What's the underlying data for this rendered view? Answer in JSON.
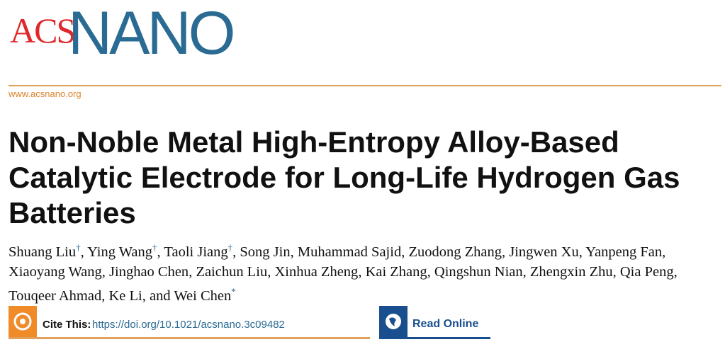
{
  "header": {
    "logo_left": "ACS",
    "logo_right": "NANO",
    "url": "www.acsnano.org"
  },
  "article": {
    "title": "Non-Noble Metal High-Entropy Alloy-Based Catalytic Electrode for Long-Life Hydrogen Gas Batteries",
    "authors": [
      {
        "name": "Shuang Liu",
        "mark": "†"
      },
      {
        "name": "Ying Wang",
        "mark": "†"
      },
      {
        "name": "Taoli Jiang",
        "mark": "†"
      },
      {
        "name": "Song Jin"
      },
      {
        "name": "Muhammad Sajid"
      },
      {
        "name": "Zuodong Zhang"
      },
      {
        "name": "Jingwen Xu"
      },
      {
        "name": "Yanpeng Fan"
      },
      {
        "name": "Xiaoyang Wang"
      },
      {
        "name": "Jinghao Chen"
      },
      {
        "name": "Zaichun Liu"
      },
      {
        "name": "Xinhua Zheng"
      },
      {
        "name": "Kai Zhang"
      },
      {
        "name": "Qingshun Nian"
      },
      {
        "name": "Zhengxin Zhu"
      },
      {
        "name": "Qia Peng"
      },
      {
        "name": "Touqeer Ahmad"
      },
      {
        "name": "Ke Li"
      },
      {
        "name": "Wei Chen",
        "mark": "*"
      }
    ],
    "conjunction": "and"
  },
  "actions": {
    "cite_label": "Cite This:",
    "doi": "https://doi.org/10.1021/acsnano.3c09482",
    "read_online": "Read Online"
  }
}
